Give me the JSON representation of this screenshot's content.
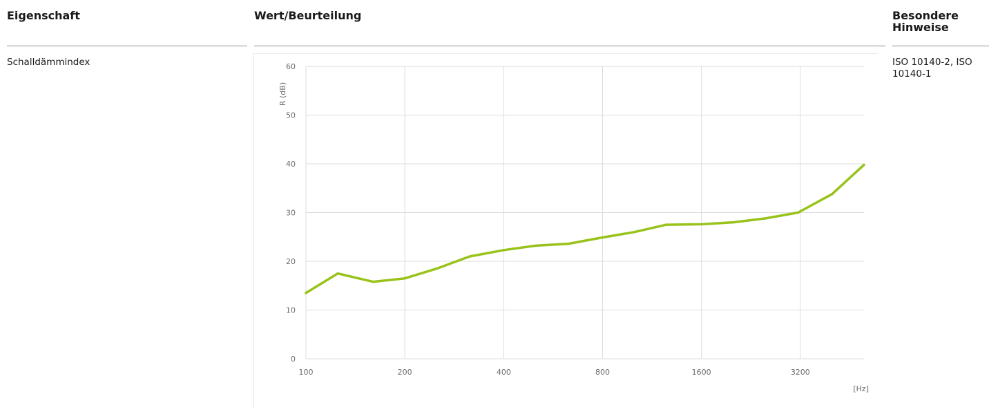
{
  "table": {
    "headers": {
      "property": "Eigenschaft",
      "value": "Wert/Beurteilung",
      "notes": "Besondere Hinweise"
    },
    "row": {
      "property": "Schalldämmindex",
      "notes": "ISO 10140-2, ISO 10140-1"
    }
  },
  "colors": {
    "line": "#99c21a",
    "grid": "#dcdcdc",
    "rule": "#8a8a8a"
  },
  "chart_data": {
    "type": "line",
    "title": "",
    "ylabel": "R (dB)",
    "xlabel": "[Hz]",
    "x_ticks": [
      "100",
      "200",
      "400",
      "800",
      "1600",
      "3200"
    ],
    "y_ticks": [
      0,
      10,
      20,
      30,
      40,
      50,
      60
    ],
    "ylim": [
      0,
      60
    ],
    "xscale": "log",
    "grid": true,
    "x": [
      100,
      125,
      160,
      200,
      250,
      315,
      400,
      500,
      630,
      800,
      1000,
      1250,
      1600,
      2000,
      2500,
      3150,
      4000,
      5000
    ],
    "values": [
      13.5,
      17.5,
      15.8,
      16.5,
      18.5,
      21.0,
      22.3,
      23.2,
      23.6,
      24.9,
      26.0,
      27.5,
      27.6,
      28.0,
      28.8,
      30.0,
      33.8,
      39.8
    ]
  }
}
